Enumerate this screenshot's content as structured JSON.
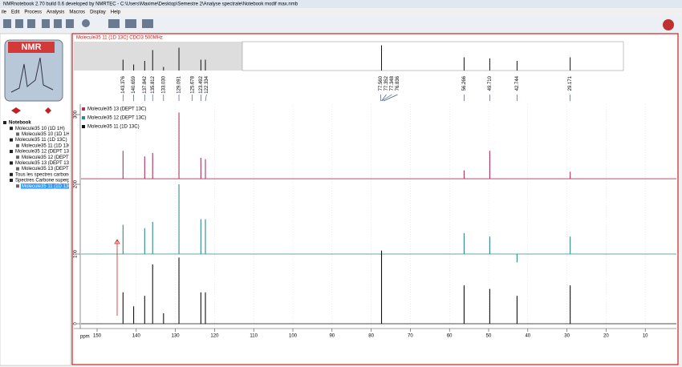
{
  "window": {
    "title": "NMRnotebook 2.70  build 0.6 developed by NMRTEC - C:\\Users\\Maxime\\Desktop\\Semestre 2\\Analyse spectrale\\Notebook modif max.nmb"
  },
  "menu": [
    "ile",
    "Edit",
    "Process",
    "Analysis",
    "Macros",
    "Display",
    "Help"
  ],
  "logo": "NMR",
  "tree": [
    "Notebook",
    "Molecule35 10 (1D 1H)",
    "Molecule35 10 (1D 1H)",
    "Molecule35 11 (1D 13C)",
    "Molecule35 11 (1D 13C)",
    "Molecule35 12 (DEPT 13C)",
    "Molecule35 12 (DEPT 13C)",
    "Molecule35 13 (DEPT 13C)",
    "Molecule35 13 (DEPT 13C)",
    "Tous les spectres carbone",
    "Spectres Carbone superposes",
    "Molecule35 11 (1D 13C)"
  ],
  "panel": {
    "header": "Molecule35 11 (1D 13C) CDCl3 500MHz",
    "xaxis_label": "ppm",
    "xlim": [
      150,
      0
    ],
    "xticks": [
      150,
      140,
      130,
      120,
      110,
      100,
      90,
      80,
      70,
      60,
      50,
      40,
      30,
      20,
      10
    ],
    "ylim": [
      0,
      300
    ],
    "yticks": [
      0,
      100,
      200,
      300
    ],
    "peak_labels": [
      {
        "value": 143.376,
        "label": "143.376"
      },
      {
        "value": 140.659,
        "label": "140.659"
      },
      {
        "value": 137.842,
        "label": "137.842"
      },
      {
        "value": 135.812,
        "label": "135.812"
      },
      {
        "value": 133.03,
        "label": "133.030"
      },
      {
        "value": 129.091,
        "label": "129.091"
      },
      {
        "value": 125.678,
        "label": "125.678"
      },
      {
        "value": 123.492,
        "label": "123.492"
      },
      {
        "value": 122.334,
        "label": "122.334"
      },
      {
        "value": 77.56,
        "label": "77.560"
      },
      {
        "value": 77.352,
        "label": "77.352"
      },
      {
        "value": 77.348,
        "label": "77.348"
      },
      {
        "value": 76.836,
        "label": "76.836"
      },
      {
        "value": 56.266,
        "label": "56.266"
      },
      {
        "value": 49.71,
        "label": "49.710"
      },
      {
        "value": 42.744,
        "label": "42.744"
      },
      {
        "value": 29.171,
        "label": "29.171"
      }
    ],
    "spectra": [
      {
        "name": "Molecule35 13 (DEPT 13C)",
        "color": "#b0325a",
        "baseline": 208,
        "peaks": [
          [
            143.376,
            40
          ],
          [
            137.842,
            32
          ],
          [
            135.812,
            37
          ],
          [
            129.091,
            95
          ],
          [
            123.492,
            30
          ],
          [
            122.334,
            28
          ],
          [
            56.266,
            12
          ],
          [
            49.71,
            40
          ],
          [
            29.171,
            10
          ]
        ]
      },
      {
        "name": "Molecule35 12 (DEPT 13C)",
        "color": "#2e8b8b",
        "baseline": 100,
        "peaks": [
          [
            143.376,
            42
          ],
          [
            137.842,
            37
          ],
          [
            135.812,
            46
          ],
          [
            129.091,
            100
          ],
          [
            123.492,
            50
          ],
          [
            122.334,
            50
          ],
          [
            56.266,
            30
          ],
          [
            49.71,
            25
          ],
          [
            42.744,
            -12
          ],
          [
            29.171,
            25
          ]
        ]
      },
      {
        "name": "Molecule35 11 (1D 13C)",
        "color": "#111111",
        "baseline": 0,
        "peaks": [
          [
            143.376,
            45
          ],
          [
            140.659,
            25
          ],
          [
            137.842,
            40
          ],
          [
            135.812,
            85
          ],
          [
            133.03,
            15
          ],
          [
            129.091,
            95
          ],
          [
            123.492,
            45
          ],
          [
            122.334,
            45
          ],
          [
            77.352,
            105
          ],
          [
            56.266,
            55
          ],
          [
            49.71,
            50
          ],
          [
            42.744,
            40
          ],
          [
            29.171,
            55
          ]
        ]
      }
    ]
  }
}
